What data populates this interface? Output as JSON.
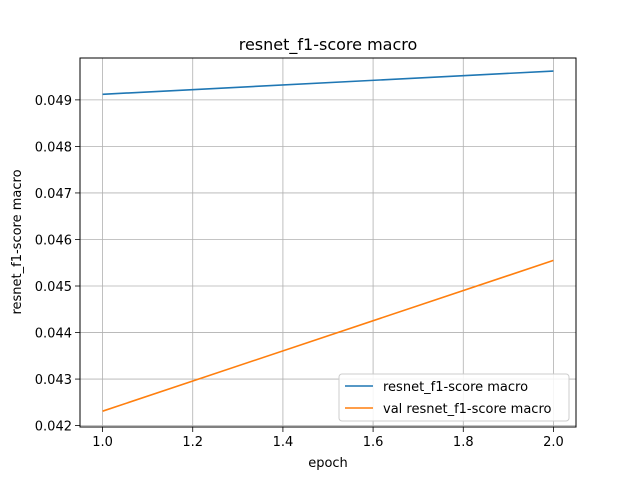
{
  "chart_data": {
    "type": "line",
    "title": "resnet_f1-score macro",
    "xlabel": "epoch",
    "ylabel": "resnet_f1-score macro",
    "xlim": [
      0.95,
      2.05
    ],
    "ylim": [
      0.04197,
      0.0499
    ],
    "xticks": [
      1.0,
      1.2,
      1.4,
      1.6,
      1.8,
      2.0
    ],
    "xtick_labels": [
      "1.0",
      "1.2",
      "1.4",
      "1.6",
      "1.8",
      "2.0"
    ],
    "yticks": [
      0.042,
      0.043,
      0.044,
      0.045,
      0.046,
      0.047,
      0.048,
      0.049
    ],
    "ytick_labels": [
      "0.042",
      "0.043",
      "0.044",
      "0.045",
      "0.046",
      "0.047",
      "0.048",
      "0.049"
    ],
    "grid": true,
    "legend_position": "lower-right",
    "series": [
      {
        "name": "resnet_f1-score macro",
        "color": "#1f77b4",
        "x": [
          1.0,
          2.0
        ],
        "y": [
          0.04912,
          0.04962
        ]
      },
      {
        "name": "val resnet_f1-score macro",
        "color": "#ff7f0e",
        "x": [
          1.0,
          2.0
        ],
        "y": [
          0.04231,
          0.04555
        ]
      }
    ]
  }
}
